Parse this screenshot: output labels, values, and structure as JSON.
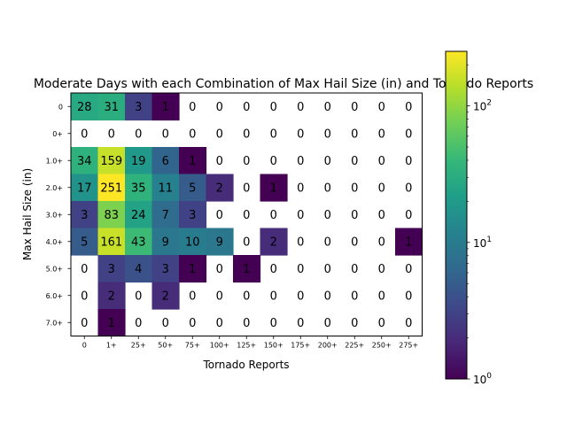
{
  "chart_data": {
    "type": "heatmap",
    "title": "Moderate Days with each Combination of Max Hail Size (in) and Tornado Reports",
    "xlabel": "Tornado Reports",
    "ylabel": "Max Hail Size (in)",
    "x_categories": [
      "0",
      "1+",
      "25+",
      "50+",
      "75+",
      "100+",
      "125+",
      "150+",
      "175+",
      "200+",
      "225+",
      "250+",
      "275+"
    ],
    "y_categories": [
      "0",
      "0+",
      "1.0+",
      "2.0+",
      "3.0+",
      "4.0+",
      "5.0+",
      "6.0+",
      "7.0+"
    ],
    "values": [
      [
        28,
        31,
        3,
        1,
        0,
        0,
        0,
        0,
        0,
        0,
        0,
        0,
        0
      ],
      [
        0,
        0,
        0,
        0,
        0,
        0,
        0,
        0,
        0,
        0,
        0,
        0,
        0
      ],
      [
        34,
        159,
        19,
        6,
        1,
        0,
        0,
        0,
        0,
        0,
        0,
        0,
        0
      ],
      [
        17,
        251,
        35,
        11,
        5,
        2,
        0,
        1,
        0,
        0,
        0,
        0,
        0
      ],
      [
        3,
        83,
        24,
        7,
        3,
        0,
        0,
        0,
        0,
        0,
        0,
        0,
        0
      ],
      [
        5,
        161,
        43,
        9,
        10,
        9,
        0,
        2,
        0,
        0,
        0,
        0,
        1
      ],
      [
        0,
        3,
        4,
        3,
        1,
        0,
        1,
        0,
        0,
        0,
        0,
        0,
        0
      ],
      [
        0,
        2,
        0,
        2,
        0,
        0,
        0,
        0,
        0,
        0,
        0,
        0,
        0
      ],
      [
        0,
        1,
        0,
        0,
        0,
        0,
        0,
        0,
        0,
        0,
        0,
        0,
        0
      ]
    ],
    "colormap": "viridis",
    "color_scale": "log",
    "color_range": [
      1,
      251
    ],
    "colorbar_ticks": [
      "10^0",
      "10^1",
      "10^2"
    ],
    "zero_cells": "blank (white)",
    "colors": {
      "viridis_stops": [
        "#440154",
        "#482878",
        "#3e4989",
        "#31688e",
        "#26828e",
        "#1f9e89",
        "#35b779",
        "#6ece58",
        "#b5de2b",
        "#fde725"
      ]
    }
  }
}
